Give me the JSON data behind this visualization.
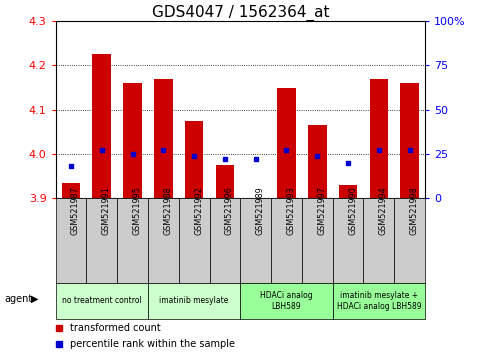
{
  "title": "GDS4047 / 1562364_at",
  "samples": [
    "GSM521987",
    "GSM521991",
    "GSM521995",
    "GSM521988",
    "GSM521992",
    "GSM521996",
    "GSM521989",
    "GSM521993",
    "GSM521997",
    "GSM521990",
    "GSM521994",
    "GSM521998"
  ],
  "transformed_count": [
    3.935,
    4.225,
    4.16,
    4.17,
    4.075,
    3.975,
    3.9,
    4.15,
    4.065,
    3.93,
    4.17,
    4.16
  ],
  "percentile_rank": [
    18,
    27,
    25,
    27,
    24,
    22,
    22,
    27,
    24,
    20,
    27,
    27
  ],
  "ylim_left": [
    3.9,
    4.3
  ],
  "ylim_right": [
    0,
    100
  ],
  "yticks_left": [
    3.9,
    4.0,
    4.1,
    4.2,
    4.3
  ],
  "yticks_right": [
    0,
    25,
    50,
    75,
    100
  ],
  "groups": [
    {
      "label": "no treatment control",
      "start": 0,
      "end": 3,
      "color": "#ccffcc"
    },
    {
      "label": "imatinib mesylate",
      "start": 3,
      "end": 6,
      "color": "#ccffcc"
    },
    {
      "label": "HDACi analog\nLBH589",
      "start": 6,
      "end": 9,
      "color": "#99ff99"
    },
    {
      "label": "imatinib mesylate +\nHDACi analog LBH589",
      "start": 9,
      "end": 12,
      "color": "#99ff99"
    }
  ],
  "bar_color": "#cc0000",
  "dot_color": "#0000cc",
  "bar_bottom": 3.9,
  "title_fontsize": 11,
  "sample_label_bg": "#cccccc",
  "agent_groups_bg_1": "#ccffcc",
  "agent_groups_bg_2": "#99ff99"
}
